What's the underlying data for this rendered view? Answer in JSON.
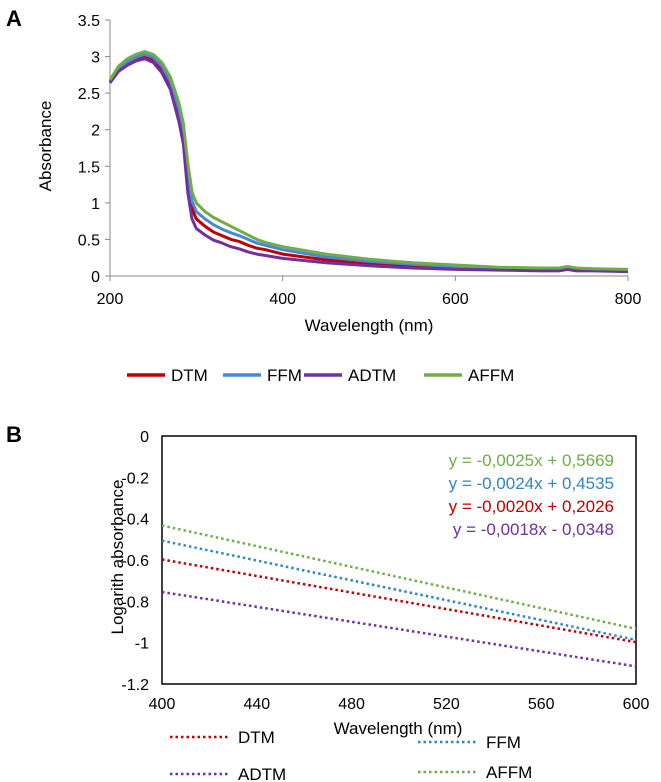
{
  "panels": {
    "a_label": "A",
    "b_label": "B"
  },
  "chart_data": [
    {
      "id": "A",
      "type": "line",
      "title": "",
      "xlabel": "Wavelength (nm)",
      "ylabel": "Absorbance",
      "xlim": [
        200,
        800
      ],
      "ylim": [
        0,
        3.5
      ],
      "xticks": [
        "200",
        "400",
        "600",
        "800"
      ],
      "xtick_values": [
        200,
        400,
        600,
        800
      ],
      "yticks": [
        "0",
        "0.5",
        "1",
        "1.5",
        "2",
        "2.5",
        "3",
        "3.5"
      ],
      "ytick_values": [
        0,
        0.5,
        1,
        1.5,
        2,
        2.5,
        3,
        3.5
      ],
      "grid": false,
      "legend_position": "bottom",
      "series": [
        {
          "name": "DTM",
          "color": "#c00000",
          "x": [
            200,
            210,
            220,
            230,
            240,
            250,
            260,
            270,
            280,
            285,
            290,
            295,
            300,
            310,
            320,
            330,
            340,
            350,
            360,
            370,
            380,
            400,
            450,
            500,
            550,
            600,
            650,
            700,
            720,
            730,
            740,
            760,
            800
          ],
          "y": [
            2.65,
            2.82,
            2.9,
            2.96,
            2.99,
            2.95,
            2.82,
            2.6,
            2.2,
            1.9,
            1.3,
            0.92,
            0.78,
            0.68,
            0.6,
            0.55,
            0.5,
            0.47,
            0.42,
            0.38,
            0.36,
            0.3,
            0.22,
            0.17,
            0.14,
            0.12,
            0.1,
            0.09,
            0.09,
            0.11,
            0.09,
            0.08,
            0.07
          ]
        },
        {
          "name": "FFM",
          "color": "#4a86d8",
          "x": [
            200,
            210,
            220,
            230,
            240,
            250,
            260,
            270,
            280,
            285,
            290,
            295,
            300,
            310,
            320,
            330,
            340,
            350,
            360,
            370,
            380,
            400,
            450,
            500,
            550,
            600,
            650,
            700,
            720,
            730,
            740,
            760,
            800
          ],
          "y": [
            2.66,
            2.84,
            2.93,
            2.99,
            3.03,
            2.99,
            2.87,
            2.66,
            2.28,
            1.98,
            1.4,
            1.02,
            0.88,
            0.78,
            0.7,
            0.64,
            0.59,
            0.55,
            0.5,
            0.45,
            0.42,
            0.36,
            0.26,
            0.2,
            0.16,
            0.13,
            0.11,
            0.1,
            0.1,
            0.12,
            0.1,
            0.09,
            0.08
          ]
        },
        {
          "name": "ADTM",
          "color": "#7030a0",
          "x": [
            200,
            210,
            220,
            230,
            240,
            250,
            260,
            270,
            280,
            285,
            290,
            295,
            300,
            310,
            320,
            330,
            340,
            350,
            360,
            370,
            380,
            400,
            450,
            500,
            550,
            600,
            650,
            700,
            720,
            730,
            740,
            760,
            800
          ],
          "y": [
            2.64,
            2.8,
            2.88,
            2.94,
            2.97,
            2.92,
            2.78,
            2.55,
            2.1,
            1.8,
            1.15,
            0.78,
            0.65,
            0.56,
            0.49,
            0.45,
            0.4,
            0.37,
            0.33,
            0.3,
            0.28,
            0.24,
            0.18,
            0.14,
            0.11,
            0.09,
            0.08,
            0.07,
            0.07,
            0.09,
            0.07,
            0.07,
            0.06
          ]
        },
        {
          "name": "AFFM",
          "color": "#70ad47",
          "x": [
            200,
            210,
            220,
            230,
            240,
            250,
            260,
            270,
            280,
            285,
            290,
            295,
            300,
            310,
            320,
            330,
            340,
            350,
            360,
            370,
            380,
            400,
            450,
            500,
            550,
            600,
            650,
            700,
            720,
            730,
            740,
            760,
            800
          ],
          "y": [
            2.68,
            2.87,
            2.97,
            3.03,
            3.07,
            3.03,
            2.92,
            2.72,
            2.36,
            2.08,
            1.55,
            1.15,
            1.0,
            0.88,
            0.8,
            0.74,
            0.68,
            0.62,
            0.56,
            0.5,
            0.46,
            0.4,
            0.3,
            0.23,
            0.18,
            0.15,
            0.12,
            0.11,
            0.11,
            0.13,
            0.11,
            0.1,
            0.09
          ]
        }
      ]
    },
    {
      "id": "B",
      "type": "line",
      "title": "",
      "xlabel": "Wavelength (nm)",
      "ylabel": "Logarith absorbance",
      "xlim": [
        400,
        600
      ],
      "ylim": [
        -1.2,
        0
      ],
      "xticks": [
        "400",
        "440",
        "480",
        "520",
        "560",
        "600"
      ],
      "xtick_values": [
        400,
        440,
        480,
        520,
        560,
        600
      ],
      "yticks": [
        "0",
        "-0.2",
        "-0.4",
        "-0.6",
        "-0.8",
        "-1",
        "-1.2"
      ],
      "ytick_values": [
        0,
        -0.2,
        -0.4,
        -0.6,
        -0.8,
        -1,
        -1.2
      ],
      "grid": false,
      "legend_position": "bottom",
      "line_style": "dotted",
      "series": [
        {
          "name": "DTM",
          "color": "#c00000",
          "slope": -0.002,
          "intercept": 0.2026,
          "equation": "y = -0,0020x + 0,2026"
        },
        {
          "name": "FFM",
          "color": "#2e86c1",
          "slope": -0.0024,
          "intercept": 0.4535,
          "equation": "y = -0,0024x + 0,4535"
        },
        {
          "name": "ADTM",
          "color": "#7030a0",
          "slope": -0.0018,
          "intercept": -0.0348,
          "equation": "y = -0,0018x - 0,0348"
        },
        {
          "name": "AFFM",
          "color": "#70ad47",
          "slope": -0.0025,
          "intercept": 0.5669,
          "equation": "y = -0,0025x + 0,5669"
        }
      ],
      "annotation_order": [
        "AFFM",
        "FFM",
        "DTM",
        "ADTM"
      ]
    }
  ]
}
